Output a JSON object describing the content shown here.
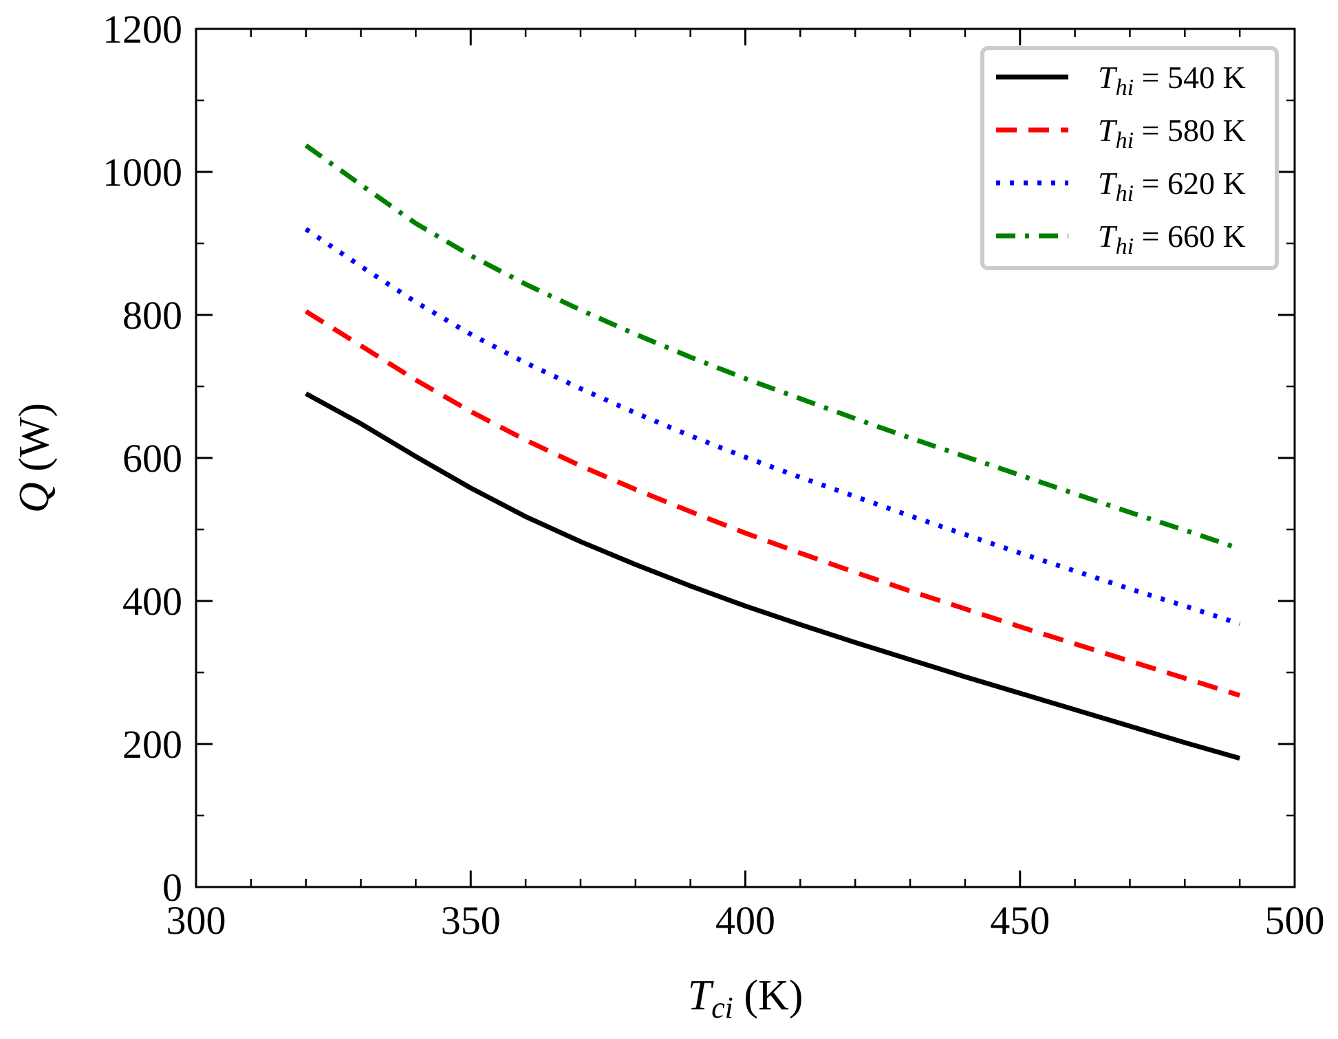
{
  "chart_data": {
    "type": "line",
    "title": "",
    "xlabel": {
      "symbol": "T",
      "sub": "ci",
      "unit": " (K)"
    },
    "ylabel": {
      "symbol": "Q",
      "unit": " (W)"
    },
    "xlim": [
      300,
      500
    ],
    "ylim": [
      0,
      1200
    ],
    "xticks": [
      300,
      350,
      400,
      450,
      500
    ],
    "yticks": [
      0,
      200,
      400,
      600,
      800,
      1000,
      1200
    ],
    "x_minor_step": 10,
    "y_minor_step": 100,
    "grid": false,
    "legend_position": "top-right",
    "x": [
      320,
      330,
      340,
      350,
      360,
      370,
      380,
      390,
      400,
      410,
      420,
      430,
      440,
      450,
      460,
      470,
      480,
      490
    ],
    "series": [
      {
        "name": "T_hi = 540 K",
        "label_symbol": "T",
        "label_sub": "hi",
        "label_value": " = 540 K",
        "color": "#000000",
        "dash": "solid",
        "values": [
          690,
          648,
          602,
          558,
          518,
          483,
          451,
          421,
          393,
          367,
          342,
          318,
          294,
          271,
          248,
          225,
          202,
          180
        ]
      },
      {
        "name": "T_hi = 580 K",
        "label_symbol": "T",
        "label_sub": "hi",
        "label_value": " = 580 K",
        "color": "#ff0000",
        "dash": "dashed",
        "values": [
          805,
          757,
          709,
          665,
          625,
          589,
          556,
          525,
          495,
          467,
          440,
          414,
          389,
          364,
          340,
          316,
          292,
          268
        ]
      },
      {
        "name": "T_hi = 620 K",
        "label_symbol": "T",
        "label_sub": "hi",
        "label_value": " = 620 K",
        "color": "#0000ff",
        "dash": "dotted",
        "values": [
          920,
          868,
          818,
          773,
          733,
          697,
          663,
          631,
          601,
          573,
          546,
          519,
          493,
          467,
          442,
          417,
          393,
          368
        ]
      },
      {
        "name": "T_hi = 660 K",
        "label_symbol": "T",
        "label_sub": "hi",
        "label_value": " = 660 K",
        "color": "#008000",
        "dash": "dashdot",
        "values": [
          1037,
          982,
          928,
          883,
          843,
          807,
          773,
          741,
          711,
          683,
          655,
          628,
          602,
          576,
          550,
          524,
          499,
          473
        ]
      }
    ]
  }
}
